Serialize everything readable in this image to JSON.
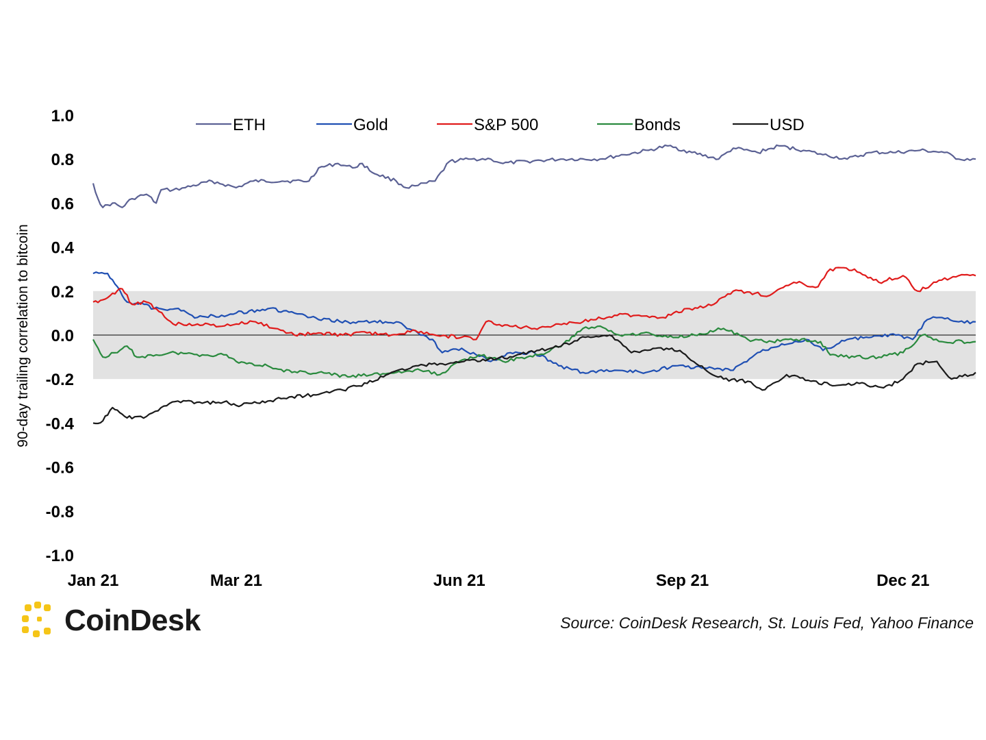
{
  "chart_data": {
    "type": "line",
    "title": "",
    "xlabel": "",
    "ylabel": "90-day trailing correlation to bitcoin",
    "ylim": [
      -1.0,
      1.0
    ],
    "yticks": [
      "1.0",
      "0.8",
      "0.6",
      "0.4",
      "0.2",
      "0.0",
      "-0.2",
      "-0.4",
      "-0.6",
      "-0.8",
      "-1.0"
    ],
    "ytick_values": [
      1.0,
      0.8,
      0.6,
      0.4,
      0.2,
      0.0,
      -0.2,
      -0.4,
      -0.6,
      -0.8,
      -1.0
    ],
    "xlim": [
      "2021-01-01",
      "2021-12-31"
    ],
    "xticks": [
      {
        "date": "2021-01-01",
        "label": "Jan 21"
      },
      {
        "date": "2021-03-01",
        "label": "Mar 21"
      },
      {
        "date": "2021-06-01",
        "label": "Jun 21"
      },
      {
        "date": "2021-09-01",
        "label": "Sep 21"
      },
      {
        "date": "2021-12-01",
        "label": "Dec 21"
      }
    ],
    "shaded_band": [
      -0.2,
      0.2
    ],
    "zero_line": true,
    "legend_position": "top",
    "series": [
      {
        "name": "ETH",
        "color": "#5b6194",
        "points": [
          [
            "2021-01-01",
            0.69
          ],
          [
            "2021-01-03",
            0.62
          ],
          [
            "2021-01-05",
            0.58
          ],
          [
            "2021-01-09",
            0.6
          ],
          [
            "2021-01-13",
            0.58
          ],
          [
            "2021-01-17",
            0.62
          ],
          [
            "2021-01-23",
            0.64
          ],
          [
            "2021-01-27",
            0.6
          ],
          [
            "2021-01-29",
            0.66
          ],
          [
            "2021-02-03",
            0.66
          ],
          [
            "2021-02-08",
            0.67
          ],
          [
            "2021-02-19",
            0.7
          ],
          [
            "2021-03-01",
            0.67
          ],
          [
            "2021-03-08",
            0.7
          ],
          [
            "2021-03-20",
            0.7
          ],
          [
            "2021-03-31",
            0.7
          ],
          [
            "2021-04-04",
            0.76
          ],
          [
            "2021-04-12",
            0.78
          ],
          [
            "2021-04-18",
            0.76
          ],
          [
            "2021-04-22",
            0.78
          ],
          [
            "2021-04-26",
            0.74
          ],
          [
            "2021-05-06",
            0.7
          ],
          [
            "2021-05-10",
            0.67
          ],
          [
            "2021-05-15",
            0.68
          ],
          [
            "2021-05-22",
            0.7
          ],
          [
            "2021-05-28",
            0.79
          ],
          [
            "2021-06-06",
            0.8
          ],
          [
            "2021-06-14",
            0.8
          ],
          [
            "2021-06-19",
            0.78
          ],
          [
            "2021-06-29",
            0.79
          ],
          [
            "2021-07-14",
            0.8
          ],
          [
            "2021-07-29",
            0.8
          ],
          [
            "2021-08-08",
            0.82
          ],
          [
            "2021-08-18",
            0.84
          ],
          [
            "2021-08-26",
            0.86
          ],
          [
            "2021-09-05",
            0.83
          ],
          [
            "2021-09-16",
            0.8
          ],
          [
            "2021-09-22",
            0.85
          ],
          [
            "2021-10-02",
            0.83
          ],
          [
            "2021-10-11",
            0.86
          ],
          [
            "2021-10-21",
            0.84
          ],
          [
            "2021-10-29",
            0.82
          ],
          [
            "2021-11-08",
            0.8
          ],
          [
            "2021-11-18",
            0.83
          ],
          [
            "2021-11-28",
            0.83
          ],
          [
            "2021-12-08",
            0.84
          ],
          [
            "2021-12-18",
            0.83
          ],
          [
            "2021-12-24",
            0.8
          ],
          [
            "2021-12-31",
            0.8
          ]
        ]
      },
      {
        "name": "Gold",
        "color": "#1f4fb3",
        "points": [
          [
            "2021-01-01",
            0.28
          ],
          [
            "2021-01-07",
            0.28
          ],
          [
            "2021-01-11",
            0.22
          ],
          [
            "2021-01-15",
            0.15
          ],
          [
            "2021-01-22",
            0.14
          ],
          [
            "2021-01-26",
            0.12
          ],
          [
            "2021-02-04",
            0.12
          ],
          [
            "2021-02-13",
            0.08
          ],
          [
            "2021-02-23",
            0.09
          ],
          [
            "2021-03-01",
            0.1
          ],
          [
            "2021-03-14",
            0.12
          ],
          [
            "2021-03-25",
            0.1
          ],
          [
            "2021-04-04",
            0.07
          ],
          [
            "2021-04-16",
            0.06
          ],
          [
            "2021-04-26",
            0.06
          ],
          [
            "2021-05-06",
            0.06
          ],
          [
            "2021-05-16",
            0.0
          ],
          [
            "2021-05-21",
            -0.02
          ],
          [
            "2021-05-25",
            -0.08
          ],
          [
            "2021-06-02",
            -0.06
          ],
          [
            "2021-06-08",
            -0.09
          ],
          [
            "2021-06-14",
            -0.12
          ],
          [
            "2021-06-22",
            -0.08
          ],
          [
            "2021-07-02",
            -0.08
          ],
          [
            "2021-07-12",
            -0.14
          ],
          [
            "2021-07-22",
            -0.17
          ],
          [
            "2021-08-04",
            -0.16
          ],
          [
            "2021-08-17",
            -0.17
          ],
          [
            "2021-08-29",
            -0.14
          ],
          [
            "2021-09-10",
            -0.15
          ],
          [
            "2021-09-22",
            -0.16
          ],
          [
            "2021-10-02",
            -0.08
          ],
          [
            "2021-10-12",
            -0.04
          ],
          [
            "2021-10-22",
            -0.02
          ],
          [
            "2021-10-29",
            -0.07
          ],
          [
            "2021-11-08",
            -0.02
          ],
          [
            "2021-11-18",
            -0.01
          ],
          [
            "2021-11-28",
            0.0
          ],
          [
            "2021-12-05",
            -0.02
          ],
          [
            "2021-12-11",
            0.07
          ],
          [
            "2021-12-16",
            0.08
          ],
          [
            "2021-12-24",
            0.06
          ],
          [
            "2021-12-31",
            0.06
          ]
        ]
      },
      {
        "name": "S&P 500",
        "color": "#e01b1b",
        "points": [
          [
            "2021-01-01",
            0.15
          ],
          [
            "2021-01-05",
            0.16
          ],
          [
            "2021-01-09",
            0.19
          ],
          [
            "2021-01-13",
            0.21
          ],
          [
            "2021-01-17",
            0.14
          ],
          [
            "2021-01-23",
            0.15
          ],
          [
            "2021-01-27",
            0.12
          ],
          [
            "2021-02-03",
            0.05
          ],
          [
            "2021-02-13",
            0.05
          ],
          [
            "2021-02-23",
            0.04
          ],
          [
            "2021-03-01",
            0.05
          ],
          [
            "2021-03-09",
            0.06
          ],
          [
            "2021-03-17",
            0.03
          ],
          [
            "2021-03-25",
            0.0
          ],
          [
            "2021-04-04",
            0.01
          ],
          [
            "2021-04-14",
            0.0
          ],
          [
            "2021-04-24",
            0.01
          ],
          [
            "2021-05-04",
            0.0
          ],
          [
            "2021-05-14",
            0.02
          ],
          [
            "2021-05-22",
            0.0
          ],
          [
            "2021-06-02",
            -0.01
          ],
          [
            "2021-06-08",
            -0.02
          ],
          [
            "2021-06-12",
            0.06
          ],
          [
            "2021-06-22",
            0.04
          ],
          [
            "2021-07-02",
            0.03
          ],
          [
            "2021-07-12",
            0.05
          ],
          [
            "2021-07-22",
            0.06
          ],
          [
            "2021-08-04",
            0.09
          ],
          [
            "2021-08-14",
            0.09
          ],
          [
            "2021-08-24",
            0.08
          ],
          [
            "2021-09-04",
            0.12
          ],
          [
            "2021-09-14",
            0.14
          ],
          [
            "2021-09-22",
            0.2
          ],
          [
            "2021-10-01",
            0.19
          ],
          [
            "2021-10-07",
            0.18
          ],
          [
            "2021-10-17",
            0.24
          ],
          [
            "2021-10-27",
            0.22
          ],
          [
            "2021-11-01",
            0.3
          ],
          [
            "2021-11-11",
            0.3
          ],
          [
            "2021-11-21",
            0.24
          ],
          [
            "2021-12-01",
            0.27
          ],
          [
            "2021-12-07",
            0.2
          ],
          [
            "2021-12-17",
            0.25
          ],
          [
            "2021-12-24",
            0.27
          ],
          [
            "2021-12-31",
            0.27
          ]
        ]
      },
      {
        "name": "Bonds",
        "color": "#2a8a3e",
        "points": [
          [
            "2021-01-01",
            -0.02
          ],
          [
            "2021-01-05",
            -0.1
          ],
          [
            "2021-01-11",
            -0.08
          ],
          [
            "2021-01-15",
            -0.05
          ],
          [
            "2021-01-19",
            -0.1
          ],
          [
            "2021-01-27",
            -0.09
          ],
          [
            "2021-02-04",
            -0.08
          ],
          [
            "2021-02-15",
            -0.09
          ],
          [
            "2021-02-25",
            -0.09
          ],
          [
            "2021-03-01",
            -0.12
          ],
          [
            "2021-03-14",
            -0.14
          ],
          [
            "2021-03-24",
            -0.17
          ],
          [
            "2021-04-04",
            -0.17
          ],
          [
            "2021-04-16",
            -0.19
          ],
          [
            "2021-04-26",
            -0.18
          ],
          [
            "2021-05-06",
            -0.17
          ],
          [
            "2021-05-16",
            -0.16
          ],
          [
            "2021-05-24",
            -0.18
          ],
          [
            "2021-06-01",
            -0.12
          ],
          [
            "2021-06-09",
            -0.09
          ],
          [
            "2021-06-19",
            -0.12
          ],
          [
            "2021-06-29",
            -0.1
          ],
          [
            "2021-07-07",
            -0.08
          ],
          [
            "2021-07-14",
            -0.04
          ],
          [
            "2021-07-22",
            0.03
          ],
          [
            "2021-07-28",
            0.04
          ],
          [
            "2021-08-06",
            0.0
          ],
          [
            "2021-08-16",
            0.01
          ],
          [
            "2021-08-26",
            -0.01
          ],
          [
            "2021-09-06",
            0.0
          ],
          [
            "2021-09-18",
            0.03
          ],
          [
            "2021-09-28",
            -0.02
          ],
          [
            "2021-10-08",
            -0.03
          ],
          [
            "2021-10-18",
            -0.02
          ],
          [
            "2021-10-28",
            -0.03
          ],
          [
            "2021-11-01",
            -0.09
          ],
          [
            "2021-11-11",
            -0.1
          ],
          [
            "2021-11-21",
            -0.1
          ],
          [
            "2021-12-01",
            -0.08
          ],
          [
            "2021-12-09",
            0.0
          ],
          [
            "2021-12-17",
            -0.03
          ],
          [
            "2021-12-31",
            -0.03
          ]
        ]
      },
      {
        "name": "USD",
        "color": "#1a1a1a",
        "points": [
          [
            "2021-01-01",
            -0.4
          ],
          [
            "2021-01-05",
            -0.39
          ],
          [
            "2021-01-09",
            -0.33
          ],
          [
            "2021-01-13",
            -0.36
          ],
          [
            "2021-01-17",
            -0.38
          ],
          [
            "2021-01-23",
            -0.37
          ],
          [
            "2021-01-29",
            -0.33
          ],
          [
            "2021-02-05",
            -0.3
          ],
          [
            "2021-02-15",
            -0.31
          ],
          [
            "2021-02-25",
            -0.3
          ],
          [
            "2021-03-01",
            -0.32
          ],
          [
            "2021-03-14",
            -0.3
          ],
          [
            "2021-03-24",
            -0.28
          ],
          [
            "2021-04-04",
            -0.27
          ],
          [
            "2021-04-14",
            -0.25
          ],
          [
            "2021-04-24",
            -0.22
          ],
          [
            "2021-05-04",
            -0.17
          ],
          [
            "2021-05-14",
            -0.14
          ],
          [
            "2021-05-24",
            -0.13
          ],
          [
            "2021-06-03",
            -0.12
          ],
          [
            "2021-06-13",
            -0.11
          ],
          [
            "2021-06-23",
            -0.1
          ],
          [
            "2021-07-03",
            -0.07
          ],
          [
            "2021-07-13",
            -0.05
          ],
          [
            "2021-07-23",
            -0.01
          ],
          [
            "2021-08-02",
            0.0
          ],
          [
            "2021-08-11",
            -0.08
          ],
          [
            "2021-08-21",
            -0.06
          ],
          [
            "2021-08-31",
            -0.07
          ],
          [
            "2021-09-08",
            -0.14
          ],
          [
            "2021-09-18",
            -0.2
          ],
          [
            "2021-09-28",
            -0.21
          ],
          [
            "2021-10-04",
            -0.25
          ],
          [
            "2021-10-14",
            -0.18
          ],
          [
            "2021-10-24",
            -0.21
          ],
          [
            "2021-11-03",
            -0.23
          ],
          [
            "2021-11-13",
            -0.22
          ],
          [
            "2021-11-23",
            -0.24
          ],
          [
            "2021-12-01",
            -0.2
          ],
          [
            "2021-12-07",
            -0.13
          ],
          [
            "2021-12-15",
            -0.12
          ],
          [
            "2021-12-21",
            -0.2
          ],
          [
            "2021-12-31",
            -0.17
          ]
        ]
      }
    ]
  },
  "source": "Source: CoinDesk Research, St. Louis Fed, Yahoo Finance",
  "logo": {
    "text": "CoinDesk",
    "icon": "coindesk-logo-icon",
    "color": "#f5c518"
  }
}
